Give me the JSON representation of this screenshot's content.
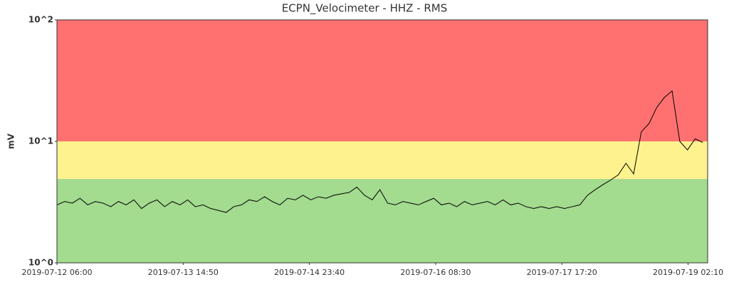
{
  "chart_data": {
    "type": "line",
    "title": "ECPN_Velocimeter - HHZ - RMS",
    "y_label": "mV",
    "log_y": true,
    "xlim": [
      "2019-07-12 06:00",
      "2019-07-19 07:15"
    ],
    "xticks": [
      "2019-07-12 06:00",
      "2019-07-13 14:50",
      "2019-07-14 23:40",
      "2019-07-16 08:30",
      "2019-07-17 17:20",
      "2019-07-19 02:10"
    ],
    "ylim": [
      1,
      100
    ],
    "yticks": [
      {
        "value": 1,
        "label": "10^0"
      },
      {
        "value": 10,
        "label": "10^1"
      },
      {
        "value": 100,
        "label": "10^2"
      }
    ],
    "bands": [
      {
        "from": 1,
        "to": 4.9,
        "color": "#a3db8f"
      },
      {
        "from": 4.9,
        "to": 10,
        "color": "#fdf28d"
      },
      {
        "from": 10,
        "to": 100,
        "color": "#fe7170"
      }
    ],
    "x": [
      "2019-07-12 06:00",
      "2019-07-12 08:00",
      "2019-07-12 10:00",
      "2019-07-12 12:00",
      "2019-07-12 14:00",
      "2019-07-12 16:00",
      "2019-07-12 18:00",
      "2019-07-12 20:00",
      "2019-07-12 22:00",
      "2019-07-13 00:00",
      "2019-07-13 02:00",
      "2019-07-13 04:00",
      "2019-07-13 06:00",
      "2019-07-13 08:00",
      "2019-07-13 10:00",
      "2019-07-13 12:00",
      "2019-07-13 14:00",
      "2019-07-13 16:00",
      "2019-07-13 18:00",
      "2019-07-13 20:00",
      "2019-07-13 22:00",
      "2019-07-14 00:00",
      "2019-07-14 02:00",
      "2019-07-14 04:00",
      "2019-07-14 06:00",
      "2019-07-14 08:00",
      "2019-07-14 10:00",
      "2019-07-14 12:00",
      "2019-07-14 14:00",
      "2019-07-14 16:00",
      "2019-07-14 18:00",
      "2019-07-14 20:00",
      "2019-07-14 22:00",
      "2019-07-15 00:00",
      "2019-07-15 02:00",
      "2019-07-15 04:00",
      "2019-07-15 06:00",
      "2019-07-15 08:00",
      "2019-07-15 10:00",
      "2019-07-15 12:00",
      "2019-07-15 14:00",
      "2019-07-15 16:00",
      "2019-07-15 18:00",
      "2019-07-15 20:00",
      "2019-07-15 22:00",
      "2019-07-16 00:00",
      "2019-07-16 02:00",
      "2019-07-16 04:00",
      "2019-07-16 06:00",
      "2019-07-16 08:00",
      "2019-07-16 10:00",
      "2019-07-16 12:00",
      "2019-07-16 14:00",
      "2019-07-16 16:00",
      "2019-07-16 18:00",
      "2019-07-16 20:00",
      "2019-07-16 22:00",
      "2019-07-17 00:00",
      "2019-07-17 02:00",
      "2019-07-17 04:00",
      "2019-07-17 06:00",
      "2019-07-17 08:00",
      "2019-07-17 10:00",
      "2019-07-17 12:00",
      "2019-07-17 14:00",
      "2019-07-17 16:00",
      "2019-07-17 18:00",
      "2019-07-17 20:00",
      "2019-07-17 22:00",
      "2019-07-18 00:00",
      "2019-07-18 02:00",
      "2019-07-18 04:00",
      "2019-07-18 06:00",
      "2019-07-18 08:00",
      "2019-07-18 10:00",
      "2019-07-18 12:00",
      "2019-07-18 14:00",
      "2019-07-18 16:00",
      "2019-07-18 18:00",
      "2019-07-18 20:00",
      "2019-07-18 22:00",
      "2019-07-19 00:00",
      "2019-07-19 02:00",
      "2019-07-19 04:00",
      "2019-07-19 06:00"
    ],
    "series": [
      {
        "color": "#000000",
        "values": [
          3.0,
          3.2,
          3.1,
          3.4,
          3.0,
          3.2,
          3.1,
          2.9,
          3.2,
          3.0,
          3.3,
          2.8,
          3.1,
          3.3,
          2.9,
          3.2,
          3.0,
          3.3,
          2.9,
          3.0,
          2.8,
          2.7,
          2.6,
          2.9,
          3.0,
          3.3,
          3.2,
          3.5,
          3.2,
          3.0,
          3.4,
          3.3,
          3.6,
          3.3,
          3.5,
          3.4,
          3.6,
          3.7,
          3.8,
          4.2,
          3.6,
          3.3,
          4.0,
          3.1,
          3.0,
          3.2,
          3.1,
          3.0,
          3.2,
          3.4,
          3.0,
          3.1,
          2.9,
          3.2,
          3.0,
          3.1,
          3.2,
          3.0,
          3.3,
          3.0,
          3.1,
          2.9,
          2.8,
          2.9,
          2.8,
          2.9,
          2.8,
          2.9,
          3.0,
          3.6,
          4.0,
          4.4,
          4.8,
          5.3,
          6.6,
          5.4,
          12,
          14,
          19,
          23,
          26,
          10,
          8.5,
          10.5,
          9.8
        ]
      }
    ]
  }
}
